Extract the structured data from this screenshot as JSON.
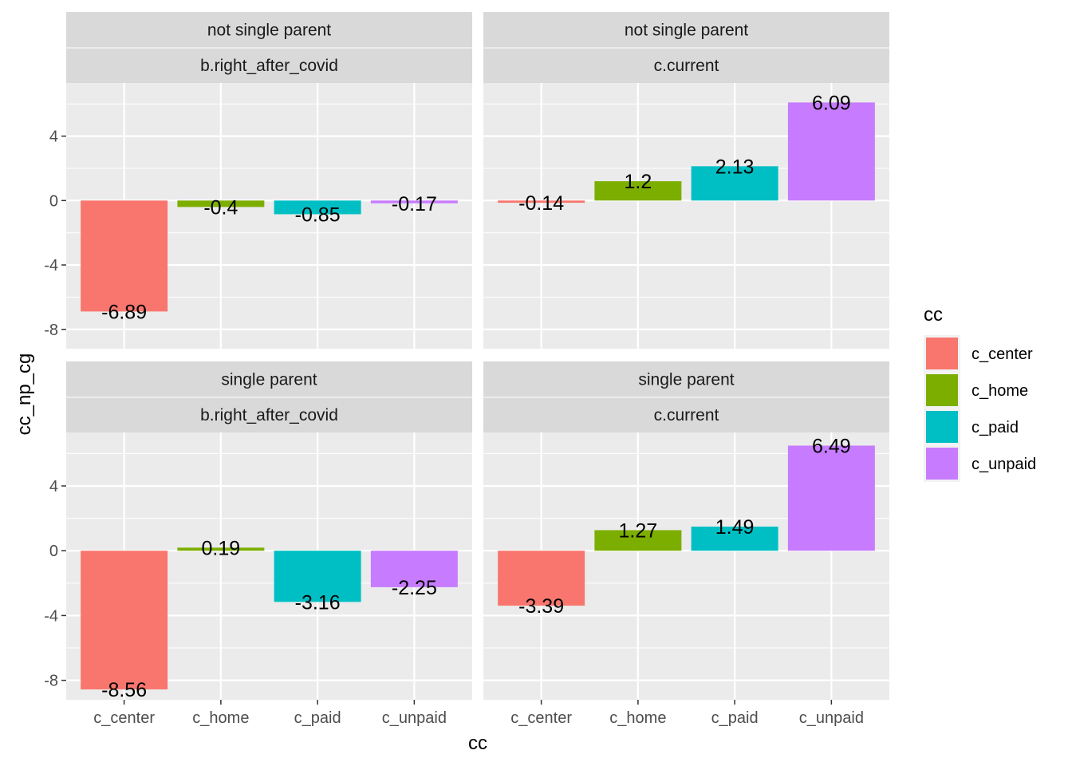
{
  "chart_data": {
    "type": "bar",
    "xlabel": "cc",
    "ylabel": "cc_np_cg",
    "categories": [
      "c_center",
      "c_home",
      "c_paid",
      "c_unpaid"
    ],
    "colors": [
      "#F8766D",
      "#7CAE00",
      "#00BFC4",
      "#C77CFF"
    ],
    "ylim": [
      -9.2,
      7.3
    ],
    "yticks": [
      4,
      0,
      -4,
      -8
    ],
    "ytick_labels": [
      "4",
      "0",
      "-4",
      "-8"
    ],
    "grid": true,
    "legend": {
      "title": "cc",
      "placement": "right",
      "entries": [
        "c_center",
        "c_home",
        "c_paid",
        "c_unpaid"
      ]
    },
    "panels": [
      {
        "strip_top": "not single parent",
        "strip_bottom": "b.right_after_covid",
        "values": [
          -6.89,
          -0.4,
          -0.85,
          -0.17
        ],
        "labels": [
          "-6.89",
          "-0.4",
          "-0.85",
          "-0.17"
        ]
      },
      {
        "strip_top": "not single parent",
        "strip_bottom": "c.current",
        "values": [
          -0.14,
          1.2,
          2.13,
          6.09
        ],
        "labels": [
          "-0.14",
          "1.2",
          "2.13",
          "6.09"
        ]
      },
      {
        "strip_top": "single parent",
        "strip_bottom": "b.right_after_covid",
        "values": [
          -8.56,
          0.19,
          -3.16,
          -2.25
        ],
        "labels": [
          "-8.56",
          "0.19",
          "-3.16",
          "-2.25"
        ]
      },
      {
        "strip_top": "single parent",
        "strip_bottom": "c.current",
        "values": [
          -3.39,
          1.27,
          1.49,
          6.49
        ],
        "labels": [
          "-3.39",
          "1.27",
          "1.49",
          "6.49"
        ]
      }
    ]
  }
}
